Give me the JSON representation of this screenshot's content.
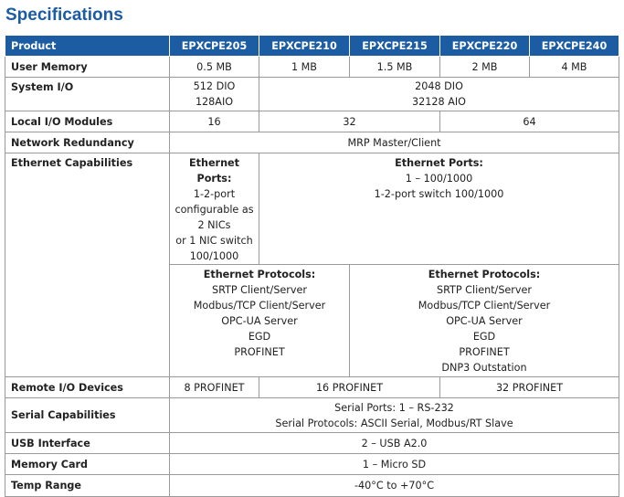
{
  "title": "Specifications",
  "table": {
    "header": [
      "Product",
      "EPXCPE205",
      "EPXCPE210",
      "EPXCPE215",
      "EPXCPE220",
      "EPXCPE240"
    ],
    "rows": [
      {
        "label": "User Memory",
        "cells": [
          [
            "0.5 MB"
          ],
          [
            "1 MB"
          ],
          [
            "1.5 MB"
          ],
          [
            "2 MB"
          ],
          [
            "4 MB"
          ]
        ]
      },
      {
        "label": "System I/O",
        "cells": [
          [
            "512 DIO",
            "128AIO"
          ],
          [
            "2048 DIO",
            "32128 AIO"
          ]
        ]
      },
      {
        "label": "Local I/O Modules",
        "cells": [
          [
            "16"
          ],
          [
            "32"
          ],
          [
            "64"
          ]
        ]
      },
      {
        "label": "Network Redundancy",
        "cells": [
          [
            "MRP Master/Client"
          ]
        ]
      },
      {
        "label": "Ethernet Capabilities",
        "cells": [
          {
            "heading": "Ethernet Ports:",
            "lines": [
              "1-2-port",
              "configurable as",
              "2 NICs",
              "or 1 NIC switch",
              "100/1000"
            ]
          },
          {
            "heading": "Ethernet Ports:",
            "lines": [
              "1 – 100/1000",
              "1-2-port switch 100/1000"
            ]
          },
          {
            "heading": "Ethernet Protocols:",
            "lines": [
              "SRTP Client/Server",
              "Modbus/TCP Client/Server",
              "OPC-UA Server",
              "EGD",
              "PROFINET"
            ]
          },
          {
            "heading": "Ethernet Protocols:",
            "lines": [
              "SRTP Client/Server",
              "Modbus/TCP Client/Server",
              "OPC-UA Server",
              "EGD",
              "PROFINET",
              "DNP3 Outstation"
            ]
          }
        ]
      },
      {
        "label": "Remote I/O Devices",
        "cells": [
          [
            "8 PROFINET"
          ],
          [
            "16 PROFINET"
          ],
          [
            "32 PROFINET"
          ]
        ]
      },
      {
        "label": "Serial Capabilities",
        "cells": [
          [
            "Serial Ports: 1 – RS-232",
            "Serial Protocols:  ASCII Serial, Modbus/RT Slave"
          ]
        ]
      },
      {
        "label": "USB Interface",
        "cells": [
          [
            "2 – USB A2.0"
          ]
        ]
      },
      {
        "label": "Memory Card",
        "cells": [
          [
            "1 – Micro SD"
          ]
        ]
      },
      {
        "label": "Temp Range",
        "cells": [
          [
            "-40°C to +70°C"
          ]
        ]
      }
    ]
  }
}
